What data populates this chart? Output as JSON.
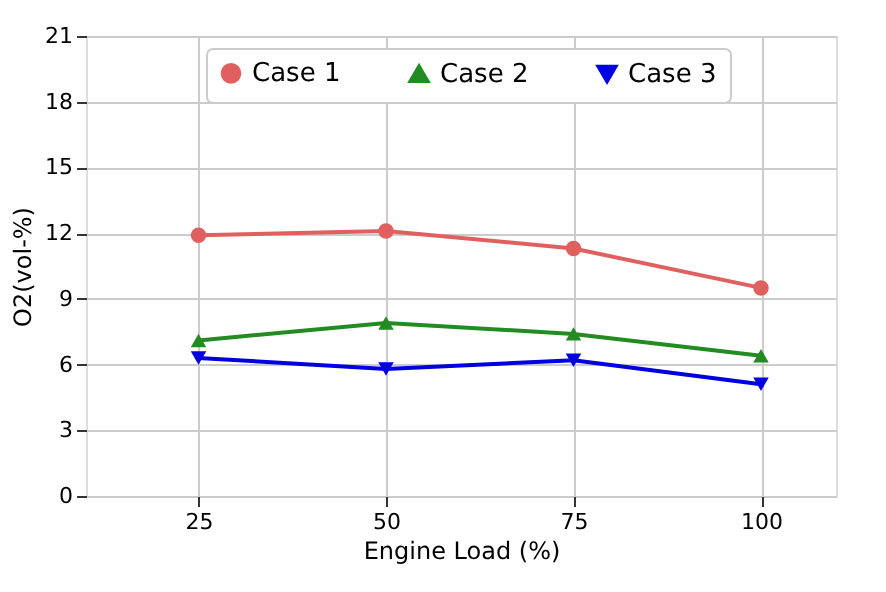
{
  "chart_data": {
    "type": "line",
    "xlabel": "Engine Load (%)",
    "ylabel": "O2(vol-%)",
    "x": [
      25,
      50,
      75,
      100
    ],
    "xlim": [
      10,
      110
    ],
    "xticks": [
      25,
      50,
      75,
      100
    ],
    "ylim": [
      0,
      21
    ],
    "yticks": [
      0,
      3,
      6,
      9,
      12,
      15,
      18,
      21
    ],
    "grid": true,
    "legend": "top",
    "series": [
      {
        "name": "Case 1",
        "color": "#e06060",
        "marker": "circle",
        "values": [
          11.9,
          12.1,
          11.3,
          9.5
        ]
      },
      {
        "name": "Case 2",
        "color": "#228b22",
        "marker": "triangle",
        "values": [
          7.1,
          7.9,
          7.4,
          6.4
        ]
      },
      {
        "name": "Case 3",
        "color": "#0000e0",
        "marker": "triangle-down",
        "values": [
          6.3,
          5.8,
          6.2,
          5.1
        ]
      }
    ]
  }
}
